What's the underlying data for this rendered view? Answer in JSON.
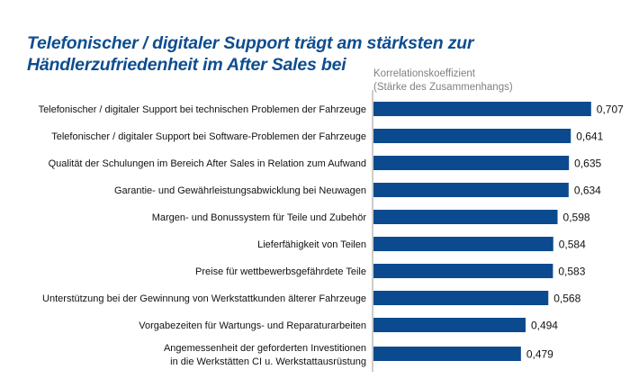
{
  "chart_data": {
    "type": "bar",
    "orientation": "horizontal",
    "title": "Telefonischer / digitaler Support trägt am stärksten zur Händlerzufriedenheit im After Sales bei",
    "title_lines": [
      "Telefonischer / digitaler Support trägt am stärksten zur",
      "Händlerzufriedenheit im After Sales bei"
    ],
    "xlabel": "Korrelationskoeffizient (Stärke des Zusammenhangs)",
    "xlabel_lines": [
      "Korrelationskoeffizient",
      "(Stärke des Zusammenhangs)"
    ],
    "ylabel": "",
    "xlim": [
      0,
      1
    ],
    "grid": false,
    "bar_color": "#0b4a8e",
    "title_color": "#0e4d8f",
    "categories": [
      [
        "Telefonischer / digitaler Support bei technischen Problemen der Fahrzeuge"
      ],
      [
        "Telefonischer / digitaler Support bei Software-Problemen der Fahrzeuge"
      ],
      [
        "Qualität der Schulungen im Bereich After Sales in Relation zum Aufwand"
      ],
      [
        "Garantie- und Gewährleistungsabwicklung bei Neuwagen"
      ],
      [
        "Margen- und Bonussystem für Teile und Zubehör"
      ],
      [
        "Lieferfähigkeit von Teilen"
      ],
      [
        "Preise für wettbewerbsgefährdete Teile"
      ],
      [
        "Unterstützung bei der Gewinnung von Werkstattkunden älterer Fahrzeuge"
      ],
      [
        "Vorgabezeiten für Wartungs- und Reparaturarbeiten"
      ],
      [
        "Angemessenheit der geforderten Investitionen",
        "in die Werkstätten CI u. Werkstattausrüstung"
      ]
    ],
    "values": [
      0.707,
      0.641,
      0.635,
      0.634,
      0.598,
      0.584,
      0.583,
      0.568,
      0.494,
      0.479
    ],
    "value_labels": [
      "0,707",
      "0,641",
      "0,635",
      "0,634",
      "0,598",
      "0,584",
      "0,583",
      "0,568",
      "0,494",
      "0,479"
    ]
  }
}
